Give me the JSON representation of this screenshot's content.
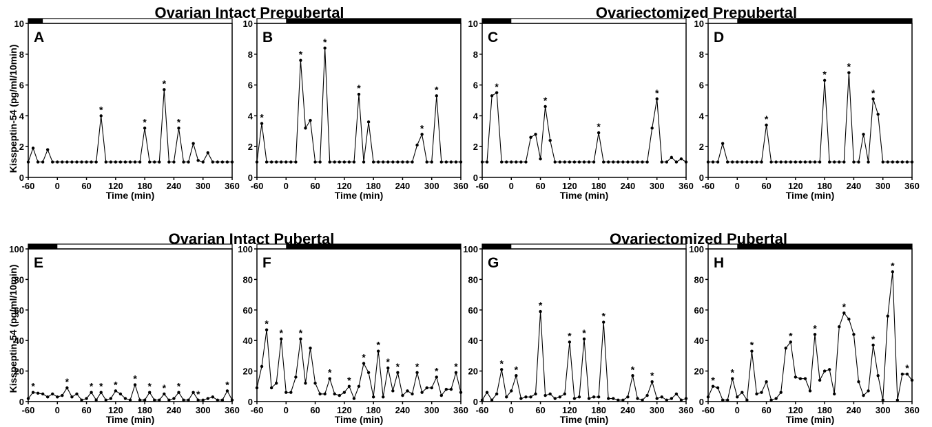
{
  "figure": {
    "group_titles": [
      {
        "text": "Ovarian Intact Prepubertal"
      },
      {
        "text": "Ovariectomized Prepubertal"
      },
      {
        "text": "Ovarian Intact Pubertal"
      },
      {
        "text": "Ovariectomized Pubertal"
      }
    ],
    "ylabel": "Kisspeptin-54 (pg/ml/10min)",
    "xlabel": "Time (min)",
    "colors": {
      "line": "#000000",
      "bar_dark": "#000000",
      "bar_light": "#ffffff"
    }
  },
  "chart_data": [
    {
      "panel": "A",
      "type": "line",
      "xlim": [
        -60,
        360
      ],
      "ylim": [
        0,
        10
      ],
      "xticks": [
        -60,
        0,
        60,
        120,
        180,
        240,
        300,
        360
      ],
      "yticks": [
        0,
        2,
        4,
        6,
        8,
        10
      ],
      "dark_period": [
        -60,
        -30
      ],
      "x": [
        -60,
        -50,
        -40,
        -30,
        -20,
        -10,
        0,
        10,
        20,
        30,
        40,
        50,
        60,
        70,
        80,
        90,
        100,
        110,
        120,
        130,
        140,
        150,
        160,
        170,
        180,
        190,
        200,
        210,
        220,
        230,
        240,
        250,
        260,
        270,
        280,
        290,
        300,
        310,
        320,
        330,
        340,
        350,
        360
      ],
      "y": [
        1,
        1.9,
        1,
        1,
        1.8,
        1,
        1,
        1,
        1,
        1,
        1,
        1,
        1,
        1,
        1,
        4,
        1,
        1,
        1,
        1,
        1,
        1,
        1,
        1,
        3.2,
        1,
        1,
        1,
        5.7,
        1,
        1,
        3.2,
        1,
        1,
        2.2,
        1.1,
        1,
        1.6,
        1,
        1,
        1,
        1,
        1
      ],
      "peaks_x": [
        90,
        180,
        220,
        250
      ]
    },
    {
      "panel": "B",
      "type": "line",
      "xlim": [
        -60,
        360
      ],
      "ylim": [
        0,
        10
      ],
      "xticks": [
        -60,
        0,
        60,
        120,
        180,
        240,
        300,
        360
      ],
      "yticks": [
        0,
        2,
        4,
        6,
        8,
        10
      ],
      "dark_period": [
        0,
        360
      ],
      "x": [
        -60,
        -50,
        -40,
        -30,
        -20,
        -10,
        0,
        10,
        20,
        30,
        40,
        50,
        60,
        70,
        80,
        90,
        100,
        110,
        120,
        130,
        140,
        150,
        160,
        170,
        180,
        190,
        200,
        210,
        220,
        230,
        240,
        250,
        260,
        270,
        280,
        290,
        300,
        310,
        320,
        330,
        340,
        350,
        360
      ],
      "y": [
        1,
        3.5,
        1,
        1,
        1,
        1,
        1,
        1,
        1,
        7.6,
        3.2,
        3.7,
        1,
        1,
        8.4,
        1,
        1,
        1,
        1,
        1,
        1,
        5.4,
        1,
        3.6,
        1,
        1,
        1,
        1,
        1,
        1,
        1,
        1,
        1,
        2.1,
        2.8,
        1,
        1,
        5.3,
        1,
        1,
        1,
        1,
        1
      ],
      "peaks_x": [
        -50,
        30,
        80,
        150,
        280,
        310
      ]
    },
    {
      "panel": "C",
      "type": "line",
      "xlim": [
        -60,
        360
      ],
      "ylim": [
        0,
        10
      ],
      "xticks": [
        -60,
        0,
        60,
        120,
        180,
        240,
        300,
        360
      ],
      "yticks": [
        0,
        2,
        4,
        6,
        8,
        10
      ],
      "dark_period": [
        -60,
        0
      ],
      "x": [
        -60,
        -50,
        -40,
        -30,
        -20,
        -10,
        0,
        10,
        20,
        30,
        40,
        50,
        60,
        70,
        80,
        90,
        100,
        110,
        120,
        130,
        140,
        150,
        160,
        170,
        180,
        190,
        200,
        210,
        220,
        230,
        240,
        250,
        260,
        270,
        280,
        290,
        300,
        310,
        320,
        330,
        340,
        350,
        360
      ],
      "y": [
        1,
        1,
        5.3,
        5.5,
        1,
        1,
        1,
        1,
        1,
        1,
        2.6,
        2.8,
        1.2,
        4.6,
        2.4,
        1,
        1,
        1,
        1,
        1,
        1,
        1,
        1,
        1,
        2.9,
        1,
        1,
        1,
        1,
        1,
        1,
        1,
        1,
        1,
        1,
        3.2,
        5.1,
        1,
        1,
        1.3,
        1,
        1.2,
        1
      ],
      "peaks_x": [
        -30,
        70,
        180,
        300
      ]
    },
    {
      "panel": "D",
      "type": "line",
      "xlim": [
        -60,
        360
      ],
      "ylim": [
        0,
        10
      ],
      "xticks": [
        -60,
        0,
        60,
        120,
        180,
        240,
        300,
        360
      ],
      "yticks": [
        0,
        2,
        4,
        6,
        8,
        10
      ],
      "dark_period": [
        0,
        360
      ],
      "x": [
        -60,
        -50,
        -40,
        -30,
        -20,
        -10,
        0,
        10,
        20,
        30,
        40,
        50,
        60,
        70,
        80,
        90,
        100,
        110,
        120,
        130,
        140,
        150,
        160,
        170,
        180,
        190,
        200,
        210,
        220,
        230,
        240,
        250,
        260,
        270,
        280,
        290,
        300,
        310,
        320,
        330,
        340,
        350,
        360
      ],
      "y": [
        1,
        1,
        1,
        2.2,
        1,
        1,
        1,
        1,
        1,
        1,
        1,
        1,
        3.4,
        1,
        1,
        1,
        1,
        1,
        1,
        1,
        1,
        1,
        1,
        1,
        6.3,
        1,
        1,
        1,
        1,
        6.8,
        1,
        1,
        2.8,
        1,
        5.1,
        4.1,
        1,
        1,
        1,
        1,
        1,
        1,
        1
      ],
      "peaks_x": [
        60,
        180,
        230,
        280
      ]
    },
    {
      "panel": "E",
      "type": "line",
      "xlim": [
        -60,
        360
      ],
      "ylim": [
        0,
        100
      ],
      "xticks": [
        -60,
        0,
        60,
        120,
        180,
        240,
        300,
        360
      ],
      "yticks": [
        0,
        20,
        40,
        60,
        80,
        100
      ],
      "dark_period": [
        -60,
        0
      ],
      "x": [
        -60,
        -50,
        -40,
        -30,
        -20,
        -10,
        0,
        10,
        20,
        30,
        40,
        50,
        60,
        70,
        80,
        90,
        100,
        110,
        120,
        130,
        140,
        150,
        160,
        170,
        180,
        190,
        200,
        210,
        220,
        230,
        240,
        250,
        260,
        270,
        280,
        290,
        300,
        310,
        320,
        330,
        340,
        350,
        360
      ],
      "y": [
        2,
        6,
        5.5,
        5,
        3,
        5,
        3,
        4,
        9,
        3,
        5,
        1,
        2,
        6,
        1,
        6,
        1,
        2,
        7,
        5,
        2,
        1,
        11,
        1,
        1,
        6,
        1,
        1,
        5,
        1,
        2,
        6,
        1,
        1,
        6,
        1,
        1,
        2,
        3,
        1,
        1,
        7,
        1
      ],
      "peaks_x": [
        -50,
        20,
        70,
        90,
        120,
        160,
        190,
        220,
        250,
        290,
        350
      ]
    },
    {
      "panel": "F",
      "type": "line",
      "xlim": [
        -60,
        360
      ],
      "ylim": [
        0,
        100
      ],
      "xticks": [
        -60,
        0,
        60,
        120,
        180,
        240,
        300,
        360
      ],
      "yticks": [
        0,
        20,
        40,
        60,
        80,
        100
      ],
      "dark_period": [
        0,
        360
      ],
      "x": [
        -60,
        -50,
        -40,
        -30,
        -20,
        -10,
        0,
        10,
        20,
        30,
        40,
        50,
        60,
        70,
        80,
        90,
        100,
        110,
        120,
        130,
        140,
        150,
        160,
        170,
        180,
        190,
        200,
        210,
        220,
        230,
        240,
        250,
        260,
        270,
        280,
        290,
        300,
        310,
        320,
        330,
        340,
        350,
        360
      ],
      "y": [
        9,
        23,
        47,
        9,
        12,
        41,
        6,
        6,
        16,
        41,
        12,
        35,
        12,
        5,
        5,
        15,
        5,
        4,
        6,
        10,
        2,
        10,
        25,
        19,
        3,
        33,
        3,
        22,
        7,
        19,
        4,
        7,
        5,
        19,
        6,
        9,
        9,
        16,
        4,
        8,
        8,
        19,
        6
      ],
      "peaks_x": [
        -40,
        -10,
        30,
        90,
        130,
        160,
        190,
        210,
        230,
        270,
        310,
        350
      ]
    },
    {
      "panel": "G",
      "type": "line",
      "xlim": [
        -60,
        360
      ],
      "ylim": [
        0,
        100
      ],
      "xticks": [
        -60,
        0,
        60,
        120,
        180,
        240,
        300,
        360
      ],
      "yticks": [
        0,
        20,
        40,
        60,
        80,
        100
      ],
      "dark_period": [
        -60,
        0
      ],
      "x": [
        -60,
        -50,
        -40,
        -30,
        -20,
        -10,
        0,
        10,
        20,
        30,
        40,
        50,
        60,
        70,
        80,
        90,
        100,
        110,
        120,
        130,
        140,
        150,
        160,
        170,
        180,
        190,
        200,
        210,
        220,
        230,
        240,
        250,
        260,
        270,
        280,
        290,
        300,
        310,
        320,
        330,
        340,
        350,
        360
      ],
      "y": [
        1,
        6,
        1,
        5,
        21,
        3,
        7,
        17,
        2,
        3,
        3,
        5,
        59,
        4,
        5,
        2,
        3,
        5,
        39,
        2,
        3,
        41,
        2,
        3,
        3,
        52,
        2,
        2,
        1,
        1,
        3,
        17,
        2,
        1,
        4,
        13,
        2,
        3,
        1,
        2,
        5,
        1,
        2
      ],
      "peaks_x": [
        -20,
        10,
        60,
        120,
        150,
        190,
        250,
        290
      ]
    },
    {
      "panel": "H",
      "type": "line",
      "xlim": [
        -60,
        360
      ],
      "ylim": [
        0,
        100
      ],
      "xticks": [
        -60,
        0,
        60,
        120,
        180,
        240,
        300,
        360
      ],
      "yticks": [
        0,
        20,
        40,
        60,
        80,
        100
      ],
      "dark_period": [
        0,
        360
      ],
      "x": [
        -60,
        -50,
        -40,
        -30,
        -20,
        -10,
        0,
        10,
        20,
        30,
        40,
        50,
        60,
        70,
        80,
        90,
        100,
        110,
        120,
        130,
        140,
        150,
        160,
        170,
        180,
        190,
        200,
        210,
        220,
        230,
        240,
        250,
        260,
        270,
        280,
        290,
        300,
        310,
        320,
        330,
        340,
        350,
        360
      ],
      "y": [
        3,
        10,
        9,
        1,
        1,
        15,
        3,
        6,
        1,
        33,
        5,
        6,
        13,
        1,
        2,
        6,
        35,
        39,
        16,
        15,
        15,
        7,
        44,
        14,
        20,
        21,
        5,
        49,
        58,
        54,
        44,
        13,
        4,
        7,
        37,
        17,
        1,
        56,
        85,
        1,
        18,
        18,
        14
      ],
      "peaks_x": [
        -50,
        -10,
        30,
        110,
        160,
        220,
        280,
        320,
        350
      ]
    }
  ]
}
